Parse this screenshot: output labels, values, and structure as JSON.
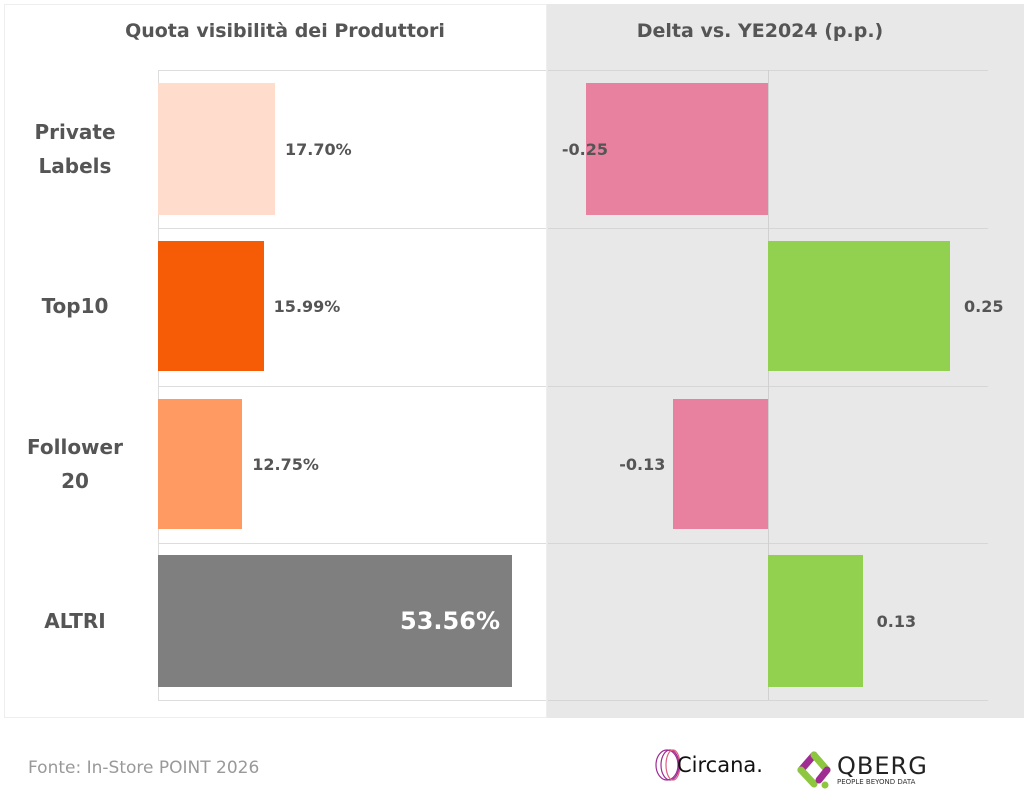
{
  "chart_data": [
    {
      "type": "bar",
      "orientation": "horizontal",
      "title": "Quota visibilità dei Produttori",
      "categories": [
        "Private Labels",
        "Top10",
        "Follower 20",
        "ALTRI"
      ],
      "values": [
        17.7,
        15.99,
        12.75,
        53.56
      ],
      "value_labels": [
        "17.70%",
        "15.99%",
        "12.75%",
        "53.56%"
      ],
      "colors": [
        "#ffdccc",
        "#f55c05",
        "#ff9a62",
        "#7f7f7f"
      ],
      "xlim": [
        0,
        55
      ]
    },
    {
      "type": "bar",
      "orientation": "horizontal",
      "title": "Delta vs. YE2024 (p.p.)",
      "categories": [
        "Private Labels",
        "Top10",
        "Follower 20",
        "ALTRI"
      ],
      "values": [
        -0.25,
        0.25,
        -0.13,
        0.13
      ],
      "value_labels": [
        "-0.25",
        "0.25",
        "-0.13",
        "0.13"
      ],
      "colors": {
        "negative": "#e8809f",
        "positive": "#92d050"
      },
      "xlim": [
        -0.3,
        0.3
      ]
    }
  ],
  "footer": {
    "source": "Fonte: In-Store POINT 2026",
    "logos": [
      "Circana.",
      "QBERG",
      "PEOPLE BEYOND DATA"
    ]
  }
}
